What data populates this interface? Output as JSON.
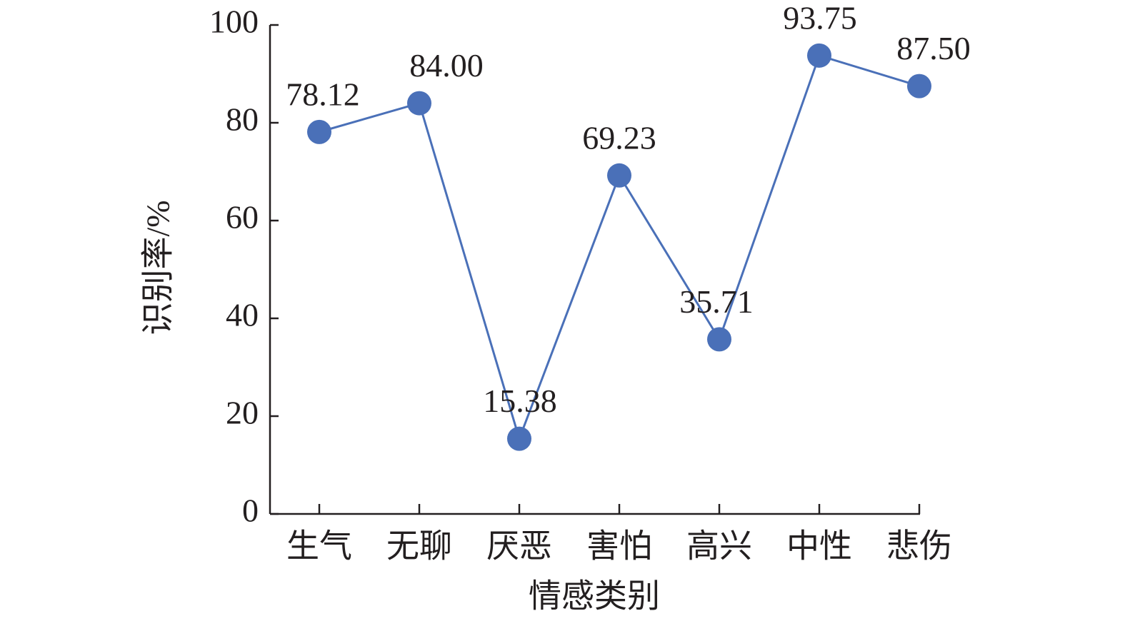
{
  "chart_data": {
    "type": "line",
    "categories": [
      "生气",
      "无聊",
      "厌恶",
      "害怕",
      "高兴",
      "中性",
      "悲伤"
    ],
    "series": [
      {
        "name": null,
        "color": "#4a70b8",
        "values": [
          78.12,
          84.0,
          15.38,
          69.23,
          35.71,
          93.75,
          87.5
        ],
        "value_labels": [
          "78.12",
          "84.00",
          "15.38",
          "69.23",
          "35.71",
          "93.75",
          "87.50"
        ]
      }
    ],
    "ylim": [
      0,
      100
    ],
    "yticks": [
      0,
      20,
      40,
      60,
      80,
      100
    ],
    "x_label": "情感类别",
    "y_label": "识别率/%"
  }
}
